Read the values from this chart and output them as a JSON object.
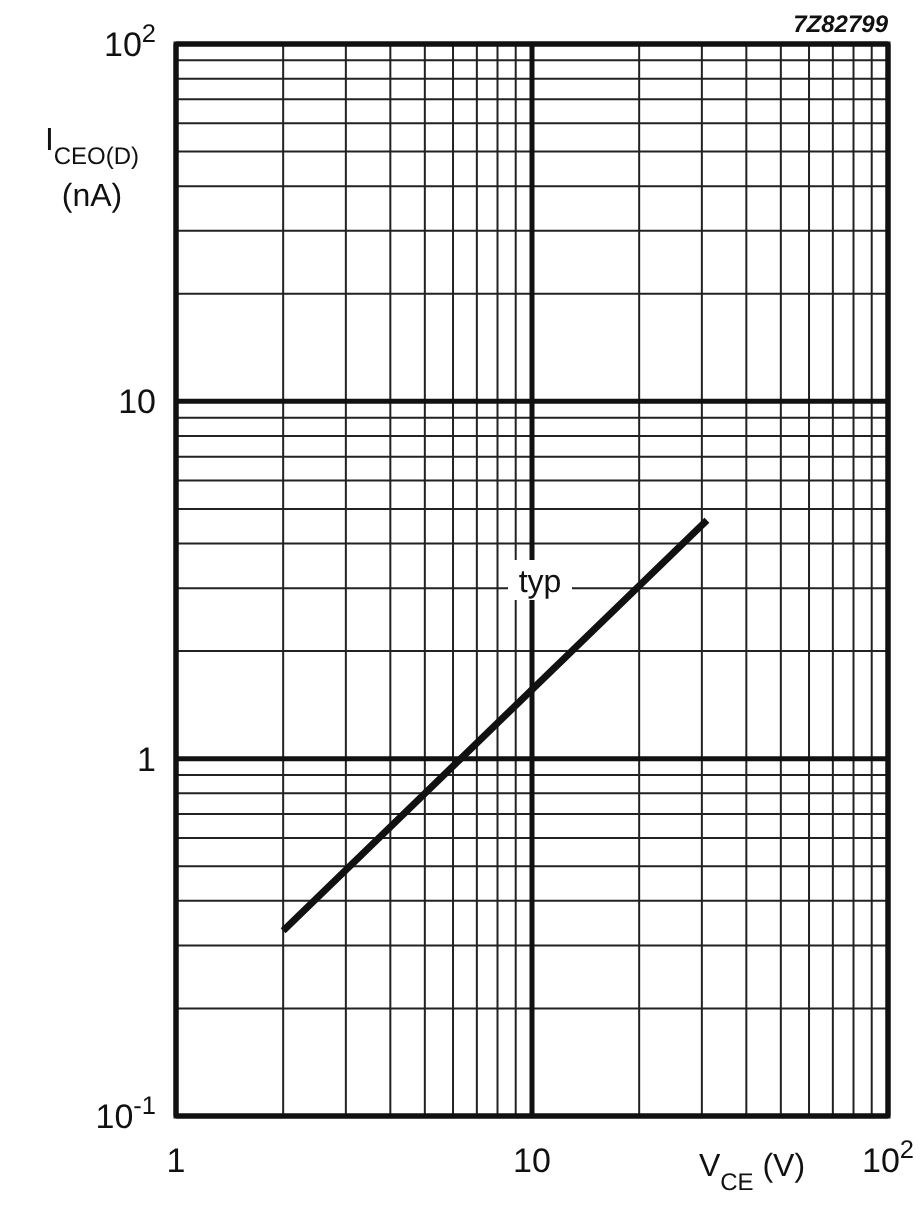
{
  "chart_data": {
    "type": "line",
    "xlabel": "V$_{CE}$ (V)",
    "ylabel": "I$_{CEO(D)}$ (nA)",
    "log": "xy",
    "grid": true,
    "xlim": [
      1,
      100
    ],
    "ylim": [
      0.1,
      100
    ],
    "xticks": [
      1,
      10,
      {
        "value": 100,
        "label": "10$^{2}$"
      }
    ],
    "yticks": [
      {
        "value": 0.1,
        "label": "10$^{-1}$"
      },
      1,
      10,
      {
        "value": 100,
        "label": "10$^{2}$"
      }
    ],
    "series": [
      {
        "color": "#111111",
        "x": [
          2,
          31
        ],
        "values": [
          0.33,
          4.65
        ]
      }
    ],
    "annotations": [
      "typ",
      "7Z82799"
    ]
  }
}
